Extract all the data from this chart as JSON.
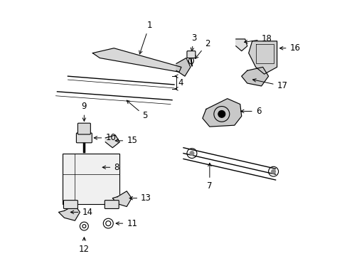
{
  "bg_color": "#ffffff",
  "line_color": "#000000",
  "fig_width": 4.89,
  "fig_height": 3.6,
  "dpi": 100,
  "font_size": 8.5,
  "xlim": [
    0,
    489
  ],
  "ylim": [
    0,
    360
  ]
}
